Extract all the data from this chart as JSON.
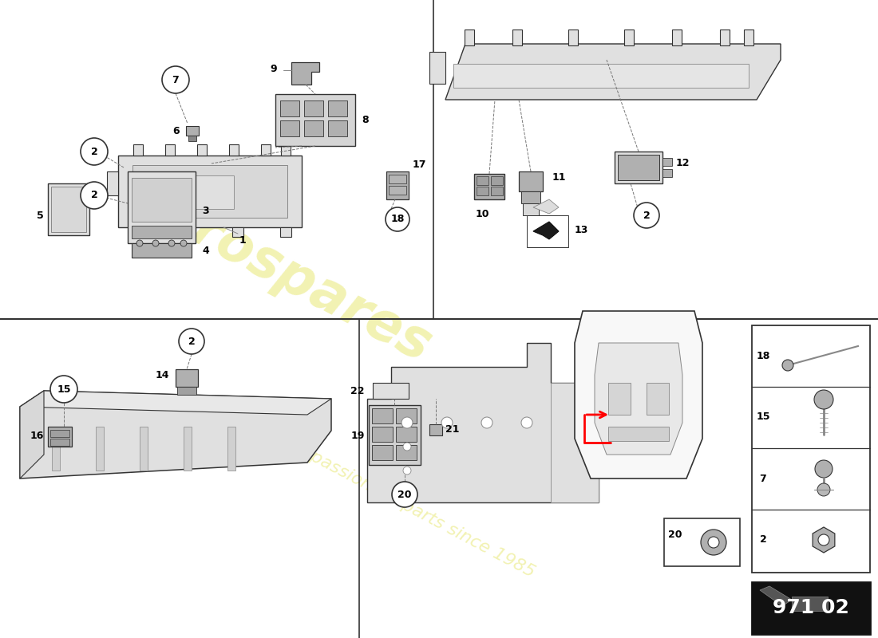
{
  "bg_color": "#ffffff",
  "part_number": "971 02",
  "watermark_color_1": "#d4d400",
  "watermark_color_2": "#d4d400",
  "watermark_alpha": 0.3,
  "divider_color": "#444444",
  "line_color": "#333333",
  "gray_part": "#c8c8c8",
  "gray_light": "#e0e0e0",
  "gray_mid": "#b0b0b0",
  "gray_dark": "#888888",
  "gray_fill": "#f2f2f2",
  "black": "#111111"
}
